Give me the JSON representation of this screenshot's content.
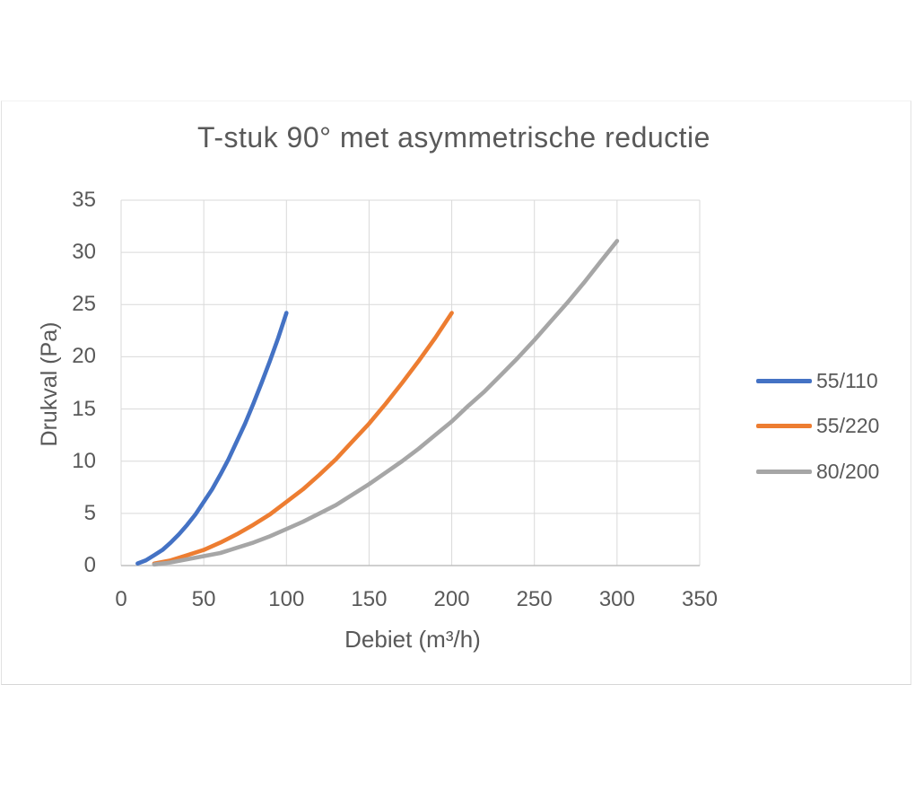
{
  "chart_data": {
    "type": "line",
    "title": "T-stuk 90° met asymmetrische reductie",
    "xlabel": "Debiet (m³/h)",
    "ylabel": "Drukval (Pa)",
    "xlim": [
      0,
      350
    ],
    "ylim": [
      0,
      35
    ],
    "xticks": [
      0,
      50,
      100,
      150,
      200,
      250,
      300,
      350
    ],
    "yticks": [
      0,
      5,
      10,
      15,
      20,
      25,
      30,
      35
    ],
    "grid": true,
    "legend_position": "right",
    "colors": {
      "text": "#595959",
      "gridline": "#d9d9d9",
      "axis_line": "#bfbfbf",
      "background": "#ffffff",
      "frame_border": "#e2e2e2"
    },
    "series": [
      {
        "name": "55/110",
        "color": "#4472c4",
        "points": [
          [
            10,
            0.2
          ],
          [
            15,
            0.5
          ],
          [
            20,
            1.0
          ],
          [
            25,
            1.5
          ],
          [
            30,
            2.2
          ],
          [
            35,
            3.0
          ],
          [
            40,
            3.9
          ],
          [
            45,
            4.9
          ],
          [
            50,
            6.1
          ],
          [
            55,
            7.3
          ],
          [
            60,
            8.7
          ],
          [
            65,
            10.2
          ],
          [
            70,
            11.9
          ],
          [
            75,
            13.6
          ],
          [
            80,
            15.5
          ],
          [
            85,
            17.5
          ],
          [
            90,
            19.6
          ],
          [
            95,
            21.8
          ],
          [
            100,
            24.2
          ]
        ]
      },
      {
        "name": "55/220",
        "color": "#ed7d31",
        "points": [
          [
            20,
            0.2
          ],
          [
            30,
            0.5
          ],
          [
            40,
            1.0
          ],
          [
            50,
            1.5
          ],
          [
            60,
            2.2
          ],
          [
            70,
            3.0
          ],
          [
            80,
            3.9
          ],
          [
            90,
            4.9
          ],
          [
            100,
            6.1
          ],
          [
            110,
            7.3
          ],
          [
            120,
            8.7
          ],
          [
            130,
            10.2
          ],
          [
            140,
            11.9
          ],
          [
            150,
            13.6
          ],
          [
            160,
            15.5
          ],
          [
            170,
            17.5
          ],
          [
            180,
            19.6
          ],
          [
            190,
            21.8
          ],
          [
            200,
            24.2
          ]
        ]
      },
      {
        "name": "80/200",
        "color": "#a6a6a6",
        "points": [
          [
            20,
            0.1
          ],
          [
            30,
            0.3
          ],
          [
            40,
            0.6
          ],
          [
            50,
            0.9
          ],
          [
            60,
            1.2
          ],
          [
            70,
            1.7
          ],
          [
            80,
            2.2
          ],
          [
            90,
            2.8
          ],
          [
            100,
            3.5
          ],
          [
            110,
            4.2
          ],
          [
            120,
            5.0
          ],
          [
            130,
            5.8
          ],
          [
            140,
            6.8
          ],
          [
            150,
            7.8
          ],
          [
            160,
            8.9
          ],
          [
            170,
            10.0
          ],
          [
            180,
            11.2
          ],
          [
            190,
            12.5
          ],
          [
            200,
            13.8
          ],
          [
            210,
            15.3
          ],
          [
            220,
            16.7
          ],
          [
            230,
            18.3
          ],
          [
            240,
            19.9
          ],
          [
            250,
            21.6
          ],
          [
            260,
            23.4
          ],
          [
            270,
            25.2
          ],
          [
            280,
            27.1
          ],
          [
            290,
            29.1
          ],
          [
            300,
            31.1
          ]
        ]
      }
    ]
  }
}
